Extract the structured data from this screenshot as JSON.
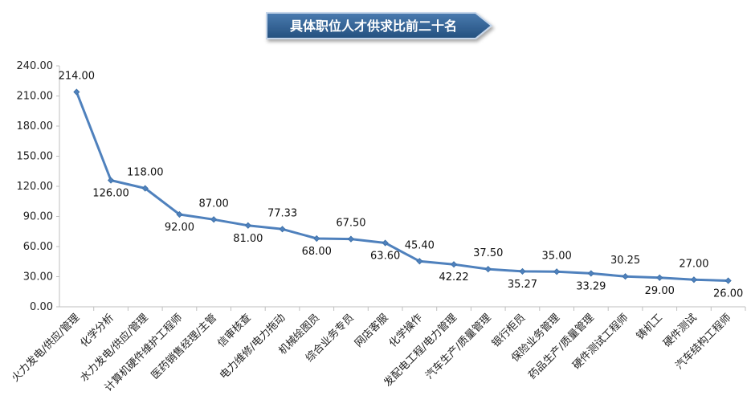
{
  "chart_data": {
    "type": "line",
    "title": "具体职位人才供求比前二十名",
    "categories": [
      "火力发电/供应/管理",
      "化学分析",
      "水力发电/供应/管理",
      "计算机硬件维护工程师",
      "医药销售经理/主管",
      "信审核查",
      "电力维修/电力拖动",
      "机械绘图员",
      "综合业务专员",
      "网店客服",
      "化学操作",
      "发配电工程/电力管理",
      "汽车生产/质量管理",
      "银行柜员",
      "保险业务管理",
      "药品生产/质量管理",
      "硬件测试工程师",
      "铸机工",
      "硬件测试",
      "汽车结构工程师"
    ],
    "values": [
      214.0,
      126.0,
      118.0,
      92.0,
      87.0,
      81.0,
      77.33,
      68.0,
      67.5,
      63.6,
      45.4,
      42.22,
      37.5,
      35.27,
      35.0,
      33.29,
      30.25,
      29.0,
      27.0,
      26.0
    ],
    "data_labels": [
      "214.00",
      "126.00",
      "118.00",
      "92.00",
      "87.00",
      "81.00",
      "77.33",
      "68.00",
      "67.50",
      "63.60",
      "45.40",
      "42.22",
      "37.50",
      "35.27",
      "35.00",
      "33.29",
      "30.25",
      "29.00",
      "27.00",
      "26.00"
    ],
    "label_position": [
      "above",
      "below",
      "above",
      "below",
      "above",
      "below",
      "above",
      "below",
      "above",
      "below",
      "above",
      "below",
      "above",
      "below",
      "above",
      "below",
      "above",
      "below",
      "above",
      "below"
    ],
    "yticks": [
      "0.00",
      "30.00",
      "60.00",
      "90.00",
      "120.00",
      "150.00",
      "180.00",
      "210.00",
      "240.00"
    ],
    "ylim": [
      0,
      240
    ],
    "grid": false,
    "legend": "none",
    "colors": {
      "line": "#4f81bd",
      "axis": "#bfbfbf",
      "title_bg": "#2e5c8a",
      "title_border": "#9ab6d6"
    }
  }
}
